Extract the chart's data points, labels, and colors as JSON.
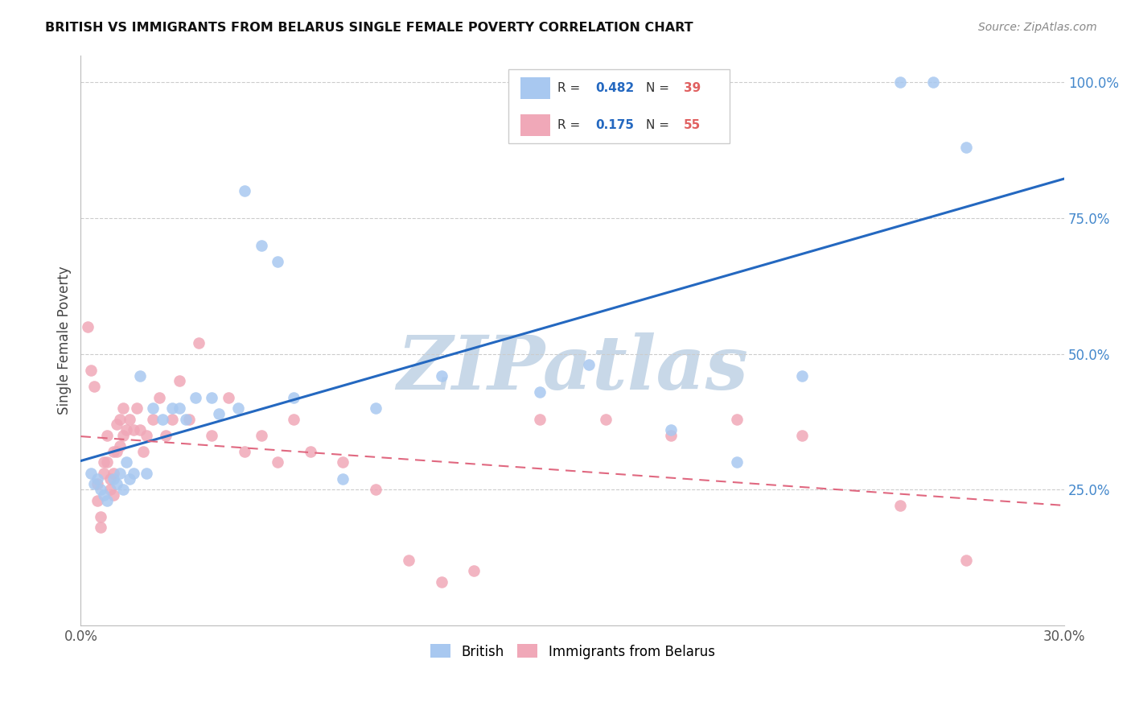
{
  "title": "BRITISH VS IMMIGRANTS FROM BELARUS SINGLE FEMALE POVERTY CORRELATION CHART",
  "source": "Source: ZipAtlas.com",
  "ylabel": "Single Female Poverty",
  "xlim": [
    0.0,
    0.3
  ],
  "ylim": [
    0.0,
    1.05
  ],
  "xtick_positions": [
    0.0,
    0.05,
    0.1,
    0.15,
    0.2,
    0.25,
    0.3
  ],
  "xtick_labels": [
    "0.0%",
    "",
    "",
    "",
    "",
    "",
    "30.0%"
  ],
  "ytick_positions": [
    0.0,
    0.25,
    0.5,
    0.75,
    1.0
  ],
  "ytick_labels": [
    "",
    "25.0%",
    "50.0%",
    "75.0%",
    "100.0%"
  ],
  "legend_british_R": "0.482",
  "legend_british_N": "39",
  "legend_belarus_R": "0.175",
  "legend_belarus_N": "55",
  "british_color": "#a8c8f0",
  "belarus_color": "#f0a8b8",
  "british_line_color": "#2468c0",
  "belarus_line_color": "#e06880",
  "watermark": "ZIPatlas",
  "watermark_color": "#c8d8e8",
  "british_x": [
    0.003,
    0.004,
    0.005,
    0.006,
    0.007,
    0.008,
    0.01,
    0.011,
    0.012,
    0.013,
    0.014,
    0.015,
    0.016,
    0.018,
    0.02,
    0.022,
    0.025,
    0.028,
    0.03,
    0.032,
    0.035,
    0.04,
    0.042,
    0.048,
    0.05,
    0.055,
    0.06,
    0.065,
    0.08,
    0.09,
    0.11,
    0.14,
    0.155,
    0.18,
    0.2,
    0.22,
    0.25,
    0.26,
    0.27
  ],
  "british_y": [
    0.28,
    0.26,
    0.27,
    0.25,
    0.24,
    0.23,
    0.27,
    0.26,
    0.28,
    0.25,
    0.3,
    0.27,
    0.28,
    0.46,
    0.28,
    0.4,
    0.38,
    0.4,
    0.4,
    0.38,
    0.42,
    0.42,
    0.39,
    0.4,
    0.8,
    0.7,
    0.67,
    0.42,
    0.27,
    0.4,
    0.46,
    0.43,
    0.48,
    0.36,
    0.3,
    0.46,
    1.0,
    1.0,
    0.88
  ],
  "belarus_x": [
    0.002,
    0.003,
    0.004,
    0.005,
    0.005,
    0.006,
    0.006,
    0.007,
    0.007,
    0.008,
    0.008,
    0.009,
    0.009,
    0.01,
    0.01,
    0.01,
    0.011,
    0.011,
    0.012,
    0.012,
    0.013,
    0.013,
    0.014,
    0.015,
    0.016,
    0.017,
    0.018,
    0.019,
    0.02,
    0.022,
    0.024,
    0.026,
    0.028,
    0.03,
    0.033,
    0.036,
    0.04,
    0.045,
    0.05,
    0.055,
    0.06,
    0.065,
    0.07,
    0.08,
    0.09,
    0.1,
    0.11,
    0.12,
    0.14,
    0.16,
    0.18,
    0.2,
    0.22,
    0.25,
    0.27
  ],
  "belarus_y": [
    0.55,
    0.47,
    0.44,
    0.26,
    0.23,
    0.2,
    0.18,
    0.3,
    0.28,
    0.35,
    0.3,
    0.27,
    0.25,
    0.32,
    0.28,
    0.24,
    0.37,
    0.32,
    0.38,
    0.33,
    0.4,
    0.35,
    0.36,
    0.38,
    0.36,
    0.4,
    0.36,
    0.32,
    0.35,
    0.38,
    0.42,
    0.35,
    0.38,
    0.45,
    0.38,
    0.52,
    0.35,
    0.42,
    0.32,
    0.35,
    0.3,
    0.38,
    0.32,
    0.3,
    0.25,
    0.12,
    0.08,
    0.1,
    0.38,
    0.38,
    0.35,
    0.38,
    0.35,
    0.22,
    0.12
  ]
}
